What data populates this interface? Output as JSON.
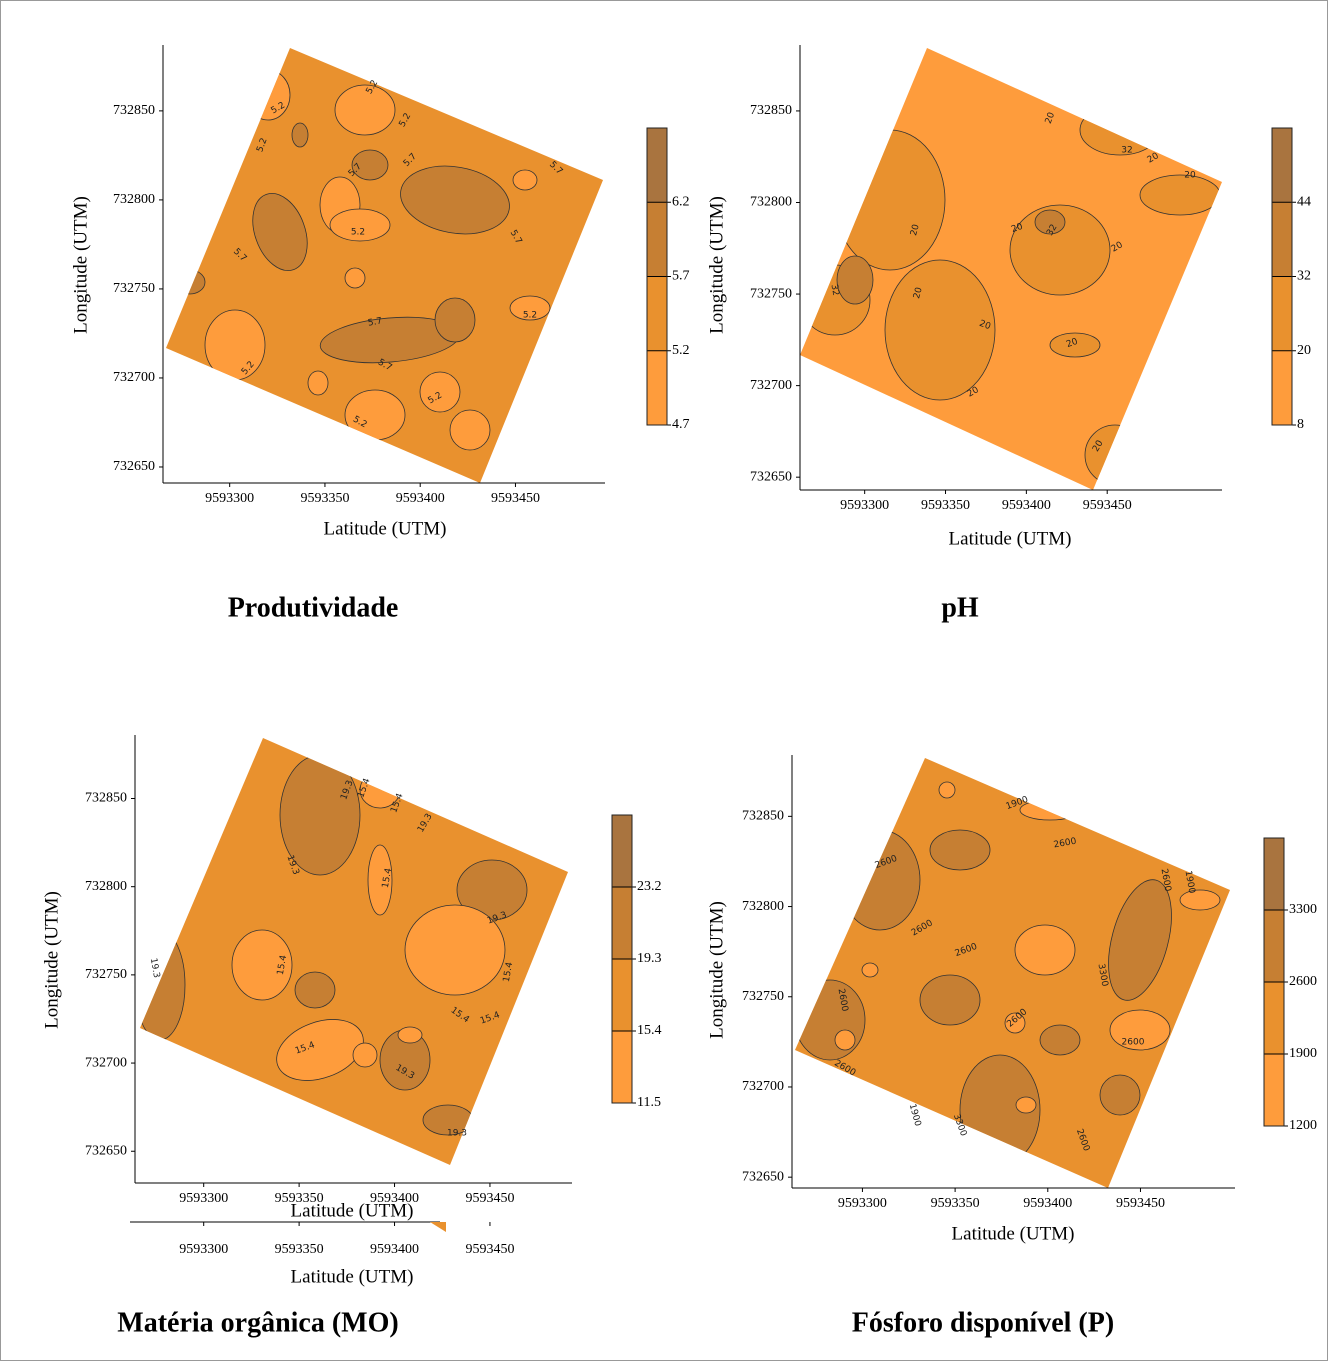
{
  "chart_data": [
    {
      "type": "contour",
      "title": "Produtividade",
      "xlabel": "Latitude (UTM)",
      "ylabel": "Longitude (UTM)",
      "xlim": [
        9593265,
        9593497
      ],
      "ylim": [
        732641,
        732887
      ],
      "xticks": [
        9593300,
        9593350,
        9593400,
        9593450
      ],
      "yticks": [
        732650,
        732700,
        732750,
        732800,
        732850
      ],
      "clim": [
        4.7,
        6.7
      ],
      "levels": [
        4.7,
        5.2,
        5.7,
        6.2
      ],
      "colors": [
        "#fe9c3c",
        "#e9912e",
        "#c67f33",
        "#a9743f"
      ],
      "contour_labels": [
        5.2,
        5.2,
        5.2,
        5.2,
        5.7,
        5.7,
        5.7,
        5.7,
        5.2,
        5.7,
        5.7,
        5.2,
        5.2,
        5.2,
        5.2,
        5.7
      ]
    },
    {
      "type": "contour",
      "title": "pH",
      "xlabel": "Latitude (UTM)",
      "ylabel": "Longitude (UTM)",
      "xlim": [
        9593260,
        9593521
      ],
      "ylim": [
        732643,
        732886
      ],
      "xticks": [
        9593300,
        9593350,
        9593400,
        9593450
      ],
      "yticks": [
        732650,
        732700,
        732750,
        732800,
        732850
      ],
      "clim": [
        8,
        56
      ],
      "levels": [
        8,
        20,
        32,
        44
      ],
      "colors": [
        "#fe9c3c",
        "#e9912e",
        "#c67f33",
        "#a9743f"
      ],
      "contour_labels": [
        20,
        32,
        20,
        20,
        32,
        20,
        20,
        32,
        20,
        20,
        20,
        20,
        20,
        20
      ]
    },
    {
      "type": "contour",
      "title": "Matéria orgânica (MO)",
      "xlabel": "Latitude (UTM)",
      "ylabel": "Longitude (UTM)",
      "xlim": [
        9593264,
        9593493
      ],
      "ylim": [
        732632,
        732886
      ],
      "xticks": [
        9593300,
        9593350,
        9593400,
        9593450
      ],
      "yticks": [
        732650,
        732700,
        732750,
        732800,
        732850
      ],
      "clim": [
        11.5,
        27.1
      ],
      "levels": [
        11.5,
        15.4,
        19.3,
        23.2
      ],
      "colors": [
        "#fe9c3c",
        "#e9912e",
        "#c67f33",
        "#a9743f"
      ],
      "contour_labels": [
        19.3,
        15.4,
        15.4,
        19.3,
        19.3,
        15.4,
        19.3,
        15.4,
        19.3,
        15.4,
        15.4,
        15.4,
        15.4,
        19.3,
        19.3
      ],
      "repeat_xticks": [
        9593300,
        9593350,
        9593400,
        9593450
      ],
      "repeat_xlabel": "Latitude (UTM)"
    },
    {
      "type": "contour",
      "title": "Fósforo disponível (P)",
      "xlabel": "Latitude (UTM)",
      "ylabel": "Longitude (UTM)",
      "xlim": [
        9593262,
        9593501
      ],
      "ylim": [
        732644,
        732884
      ],
      "xticks": [
        9593300,
        9593350,
        9593400,
        9593450
      ],
      "yticks": [
        732650,
        732700,
        732750,
        732800,
        732850
      ],
      "clim": [
        1200,
        4000
      ],
      "levels": [
        1200,
        1900,
        2600,
        3300
      ],
      "colors": [
        "#fe9c3c",
        "#e9912e",
        "#c67f33",
        "#a9743f"
      ],
      "contour_labels": [
        1900,
        2600,
        2600,
        1900,
        2600,
        2600,
        2600,
        3300,
        2600,
        1900,
        2600,
        2600,
        3300,
        2600,
        2600
      ]
    }
  ]
}
